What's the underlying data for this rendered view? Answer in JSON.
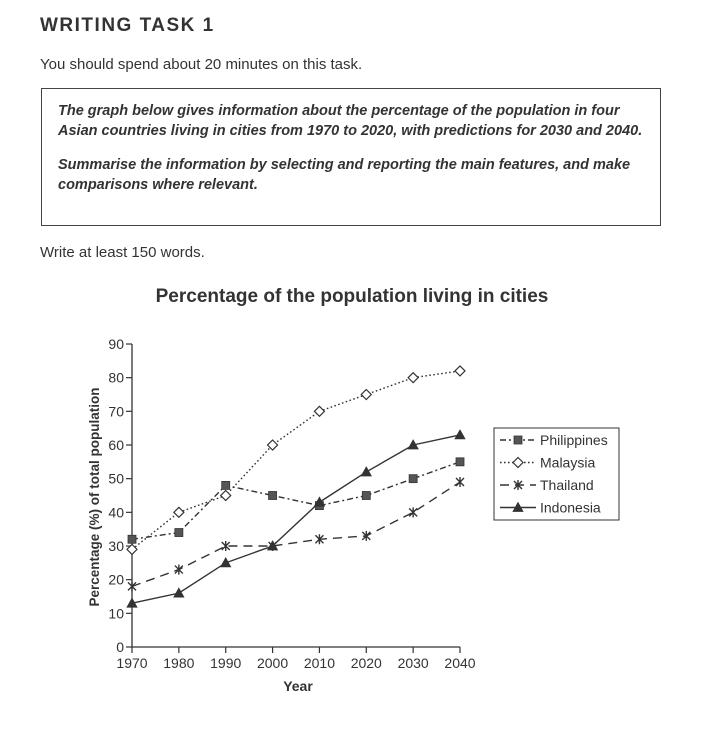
{
  "task": {
    "title": "WRITING TASK 1",
    "instruction": "You should spend about 20 minutes on this task.",
    "prompt_paragraph_1": "The graph below gives information about the percentage of the population in four Asian countries living in cities from 1970 to 2020, with predictions for 2030 and 2040.",
    "prompt_paragraph_2": "Summarise the information by selecting and reporting the main features, and make comparisons where relevant.",
    "min_words": "Write at least 150 words."
  },
  "chart_data": {
    "type": "line",
    "title": "Percentage of the population living in cities",
    "xlabel": "Year",
    "ylabel": "Percentage (%) of total population",
    "x": [
      1970,
      1980,
      1990,
      2000,
      2010,
      2020,
      2030,
      2040
    ],
    "x_tick_labels": [
      "1970",
      "1980",
      "1990",
      "2000",
      "2010",
      "2020",
      "2030",
      "2040"
    ],
    "ylim": [
      0,
      90
    ],
    "y_ticks": [
      0,
      10,
      20,
      30,
      40,
      50,
      60,
      70,
      80,
      90
    ],
    "y_tick_labels": [
      "0",
      "10",
      "20",
      "30",
      "40",
      "50",
      "60",
      "70",
      "80",
      "90"
    ],
    "grid": false,
    "legend_position": "right",
    "series": [
      {
        "name": "Philippines",
        "marker": "square",
        "line_style": "dash-dot",
        "values": [
          32,
          34,
          48,
          45,
          42,
          45,
          50,
          55
        ]
      },
      {
        "name": "Malaysia",
        "marker": "diamond-open",
        "line_style": "dotted",
        "values": [
          29,
          40,
          45,
          60,
          70,
          75,
          80,
          82
        ]
      },
      {
        "name": "Thailand",
        "marker": "x",
        "line_style": "dashed",
        "values": [
          18,
          23,
          30,
          30,
          32,
          33,
          40,
          49
        ]
      },
      {
        "name": "Indonesia",
        "marker": "triangle",
        "line_style": "solid",
        "values": [
          13,
          16,
          25,
          30,
          43,
          52,
          60,
          63
        ]
      }
    ]
  }
}
